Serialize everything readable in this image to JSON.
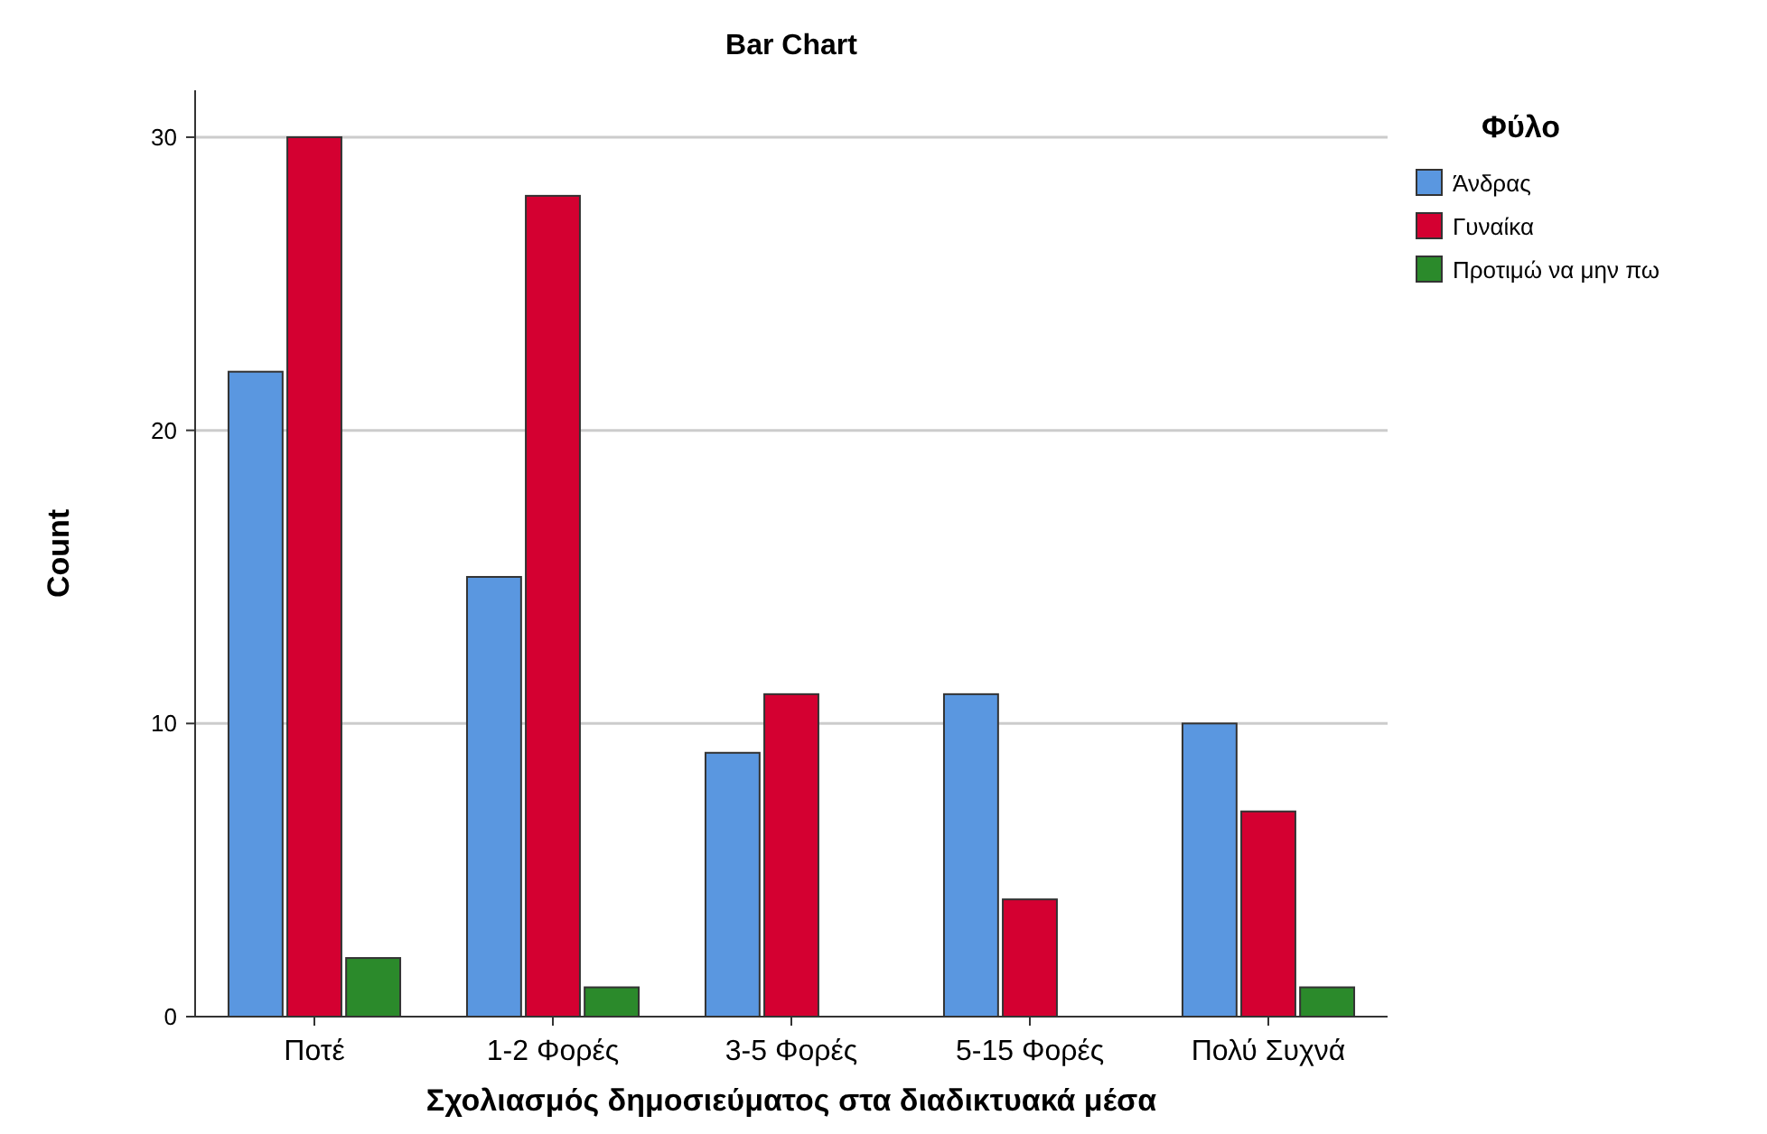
{
  "chart_data": {
    "type": "bar",
    "title": "Bar Chart",
    "xlabel": "Σχολιασμός δημοσιεύματος στα διαδικτυακά μέσα",
    "ylabel": "Count",
    "legend_title": "Φύλο",
    "categories": [
      "Ποτέ",
      "1-2 Φορές",
      "3-5 Φορές",
      "5-15 Φορές",
      "Πολύ Συχνά"
    ],
    "series": [
      {
        "name": "Άνδρας",
        "color": "#5a97e0",
        "values": [
          22,
          15,
          9,
          11,
          10
        ]
      },
      {
        "name": "Γυναίκα",
        "color": "#d40031",
        "values": [
          30,
          28,
          11,
          4,
          7
        ]
      },
      {
        "name": "Προτιμώ να μην πω",
        "color": "#2b8a2b",
        "values": [
          2,
          1,
          null,
          null,
          1
        ]
      }
    ],
    "ylim": [
      0,
      31.6
    ],
    "yticks": [
      0,
      10,
      20,
      30
    ],
    "grid": "y",
    "legend": "top right"
  }
}
